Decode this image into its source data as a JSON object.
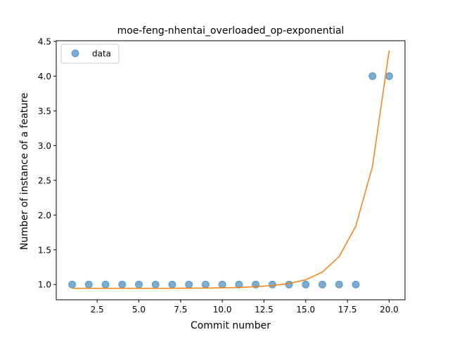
{
  "chart_data": {
    "type": "scatter",
    "title": "moe-feng-nhentai_overloaded_op-exponential",
    "xlabel": "Commit number",
    "ylabel": "Number of instance of a feature",
    "xlim": [
      0.05,
      20.95
    ],
    "ylim": [
      0.78,
      4.51
    ],
    "xticks": [
      2.5,
      5.0,
      7.5,
      10.0,
      12.5,
      15.0,
      17.5,
      20.0
    ],
    "xtick_labels": [
      "2.5",
      "5.0",
      "7.5",
      "10.0",
      "12.5",
      "15.0",
      "17.5",
      "20.0"
    ],
    "yticks": [
      1.0,
      1.5,
      2.0,
      2.5,
      3.0,
      3.5,
      4.0,
      4.5
    ],
    "ytick_labels": [
      "1.0",
      "1.5",
      "2.0",
      "2.5",
      "3.0",
      "3.5",
      "4.0",
      "4.5"
    ],
    "legend_position": "top-left",
    "series": [
      {
        "name": "data",
        "kind": "scatter",
        "color": "#1f77b4",
        "x": [
          1,
          2,
          3,
          4,
          5,
          6,
          7,
          8,
          9,
          10,
          11,
          12,
          13,
          14,
          15,
          16,
          17,
          18,
          19,
          20
        ],
        "y": [
          1,
          1,
          1,
          1,
          1,
          1,
          1,
          1,
          1,
          1,
          1,
          1,
          1,
          1,
          1,
          1,
          1,
          1,
          4,
          4
        ]
      },
      {
        "kind": "line",
        "color": "#ff7f0e",
        "x": [
          1,
          2,
          3,
          4,
          5,
          6,
          7,
          8,
          9,
          10,
          11,
          12,
          13,
          14,
          15,
          16,
          17,
          18,
          19,
          20
        ],
        "y": [
          0.945,
          0.945,
          0.945,
          0.945,
          0.945,
          0.946,
          0.946,
          0.947,
          0.949,
          0.952,
          0.958,
          0.968,
          0.985,
          1.015,
          1.068,
          1.18,
          1.4,
          1.84,
          2.7,
          4.37
        ]
      }
    ]
  }
}
